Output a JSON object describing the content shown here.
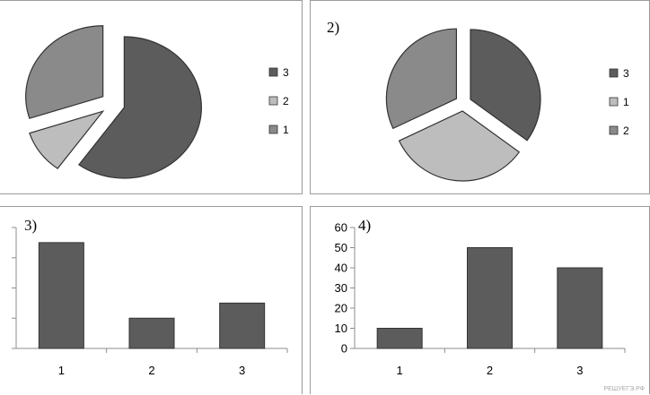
{
  "colors": {
    "dark": "#5c5c5c",
    "medium": "#8a8a8a",
    "light": "#bdbdbd",
    "stroke": "#333333",
    "axis": "#8c8c8c"
  },
  "watermark": "РЕШУЕГЭ.РФ",
  "chart_data": [
    {
      "type": "pie",
      "panel_label": "",
      "slices": [
        {
          "label": "3",
          "value": 60,
          "color_key": "dark"
        },
        {
          "label": "2",
          "value": 10,
          "color_key": "light"
        },
        {
          "label": "1",
          "value": 30,
          "color_key": "medium"
        }
      ],
      "legend": [
        "3",
        "2",
        "1"
      ],
      "legend_colors": [
        "dark",
        "light",
        "medium"
      ],
      "legend_position": "right",
      "exploded": true
    },
    {
      "type": "pie",
      "panel_label": "2)",
      "slices": [
        {
          "label": "3",
          "value": 35,
          "color_key": "dark"
        },
        {
          "label": "1",
          "value": 33,
          "color_key": "light"
        },
        {
          "label": "2",
          "value": 32,
          "color_key": "medium"
        }
      ],
      "legend": [
        "3",
        "1",
        "2"
      ],
      "legend_colors": [
        "dark",
        "light",
        "medium"
      ],
      "legend_position": "right",
      "exploded": true
    },
    {
      "type": "bar",
      "panel_label": "3)",
      "categories": [
        "1",
        "2",
        "3"
      ],
      "values": [
        35,
        10,
        15
      ],
      "ylim": [
        0,
        40
      ],
      "y_tick_labels_shown": false,
      "grid": false
    },
    {
      "type": "bar",
      "panel_label": "4)",
      "categories": [
        "1",
        "2",
        "3"
      ],
      "values": [
        10,
        50,
        40
      ],
      "ylim": [
        0,
        60
      ],
      "yticks": [
        0,
        10,
        20,
        30,
        40,
        50,
        60
      ],
      "y_tick_labels_shown": true,
      "grid": false
    }
  ]
}
